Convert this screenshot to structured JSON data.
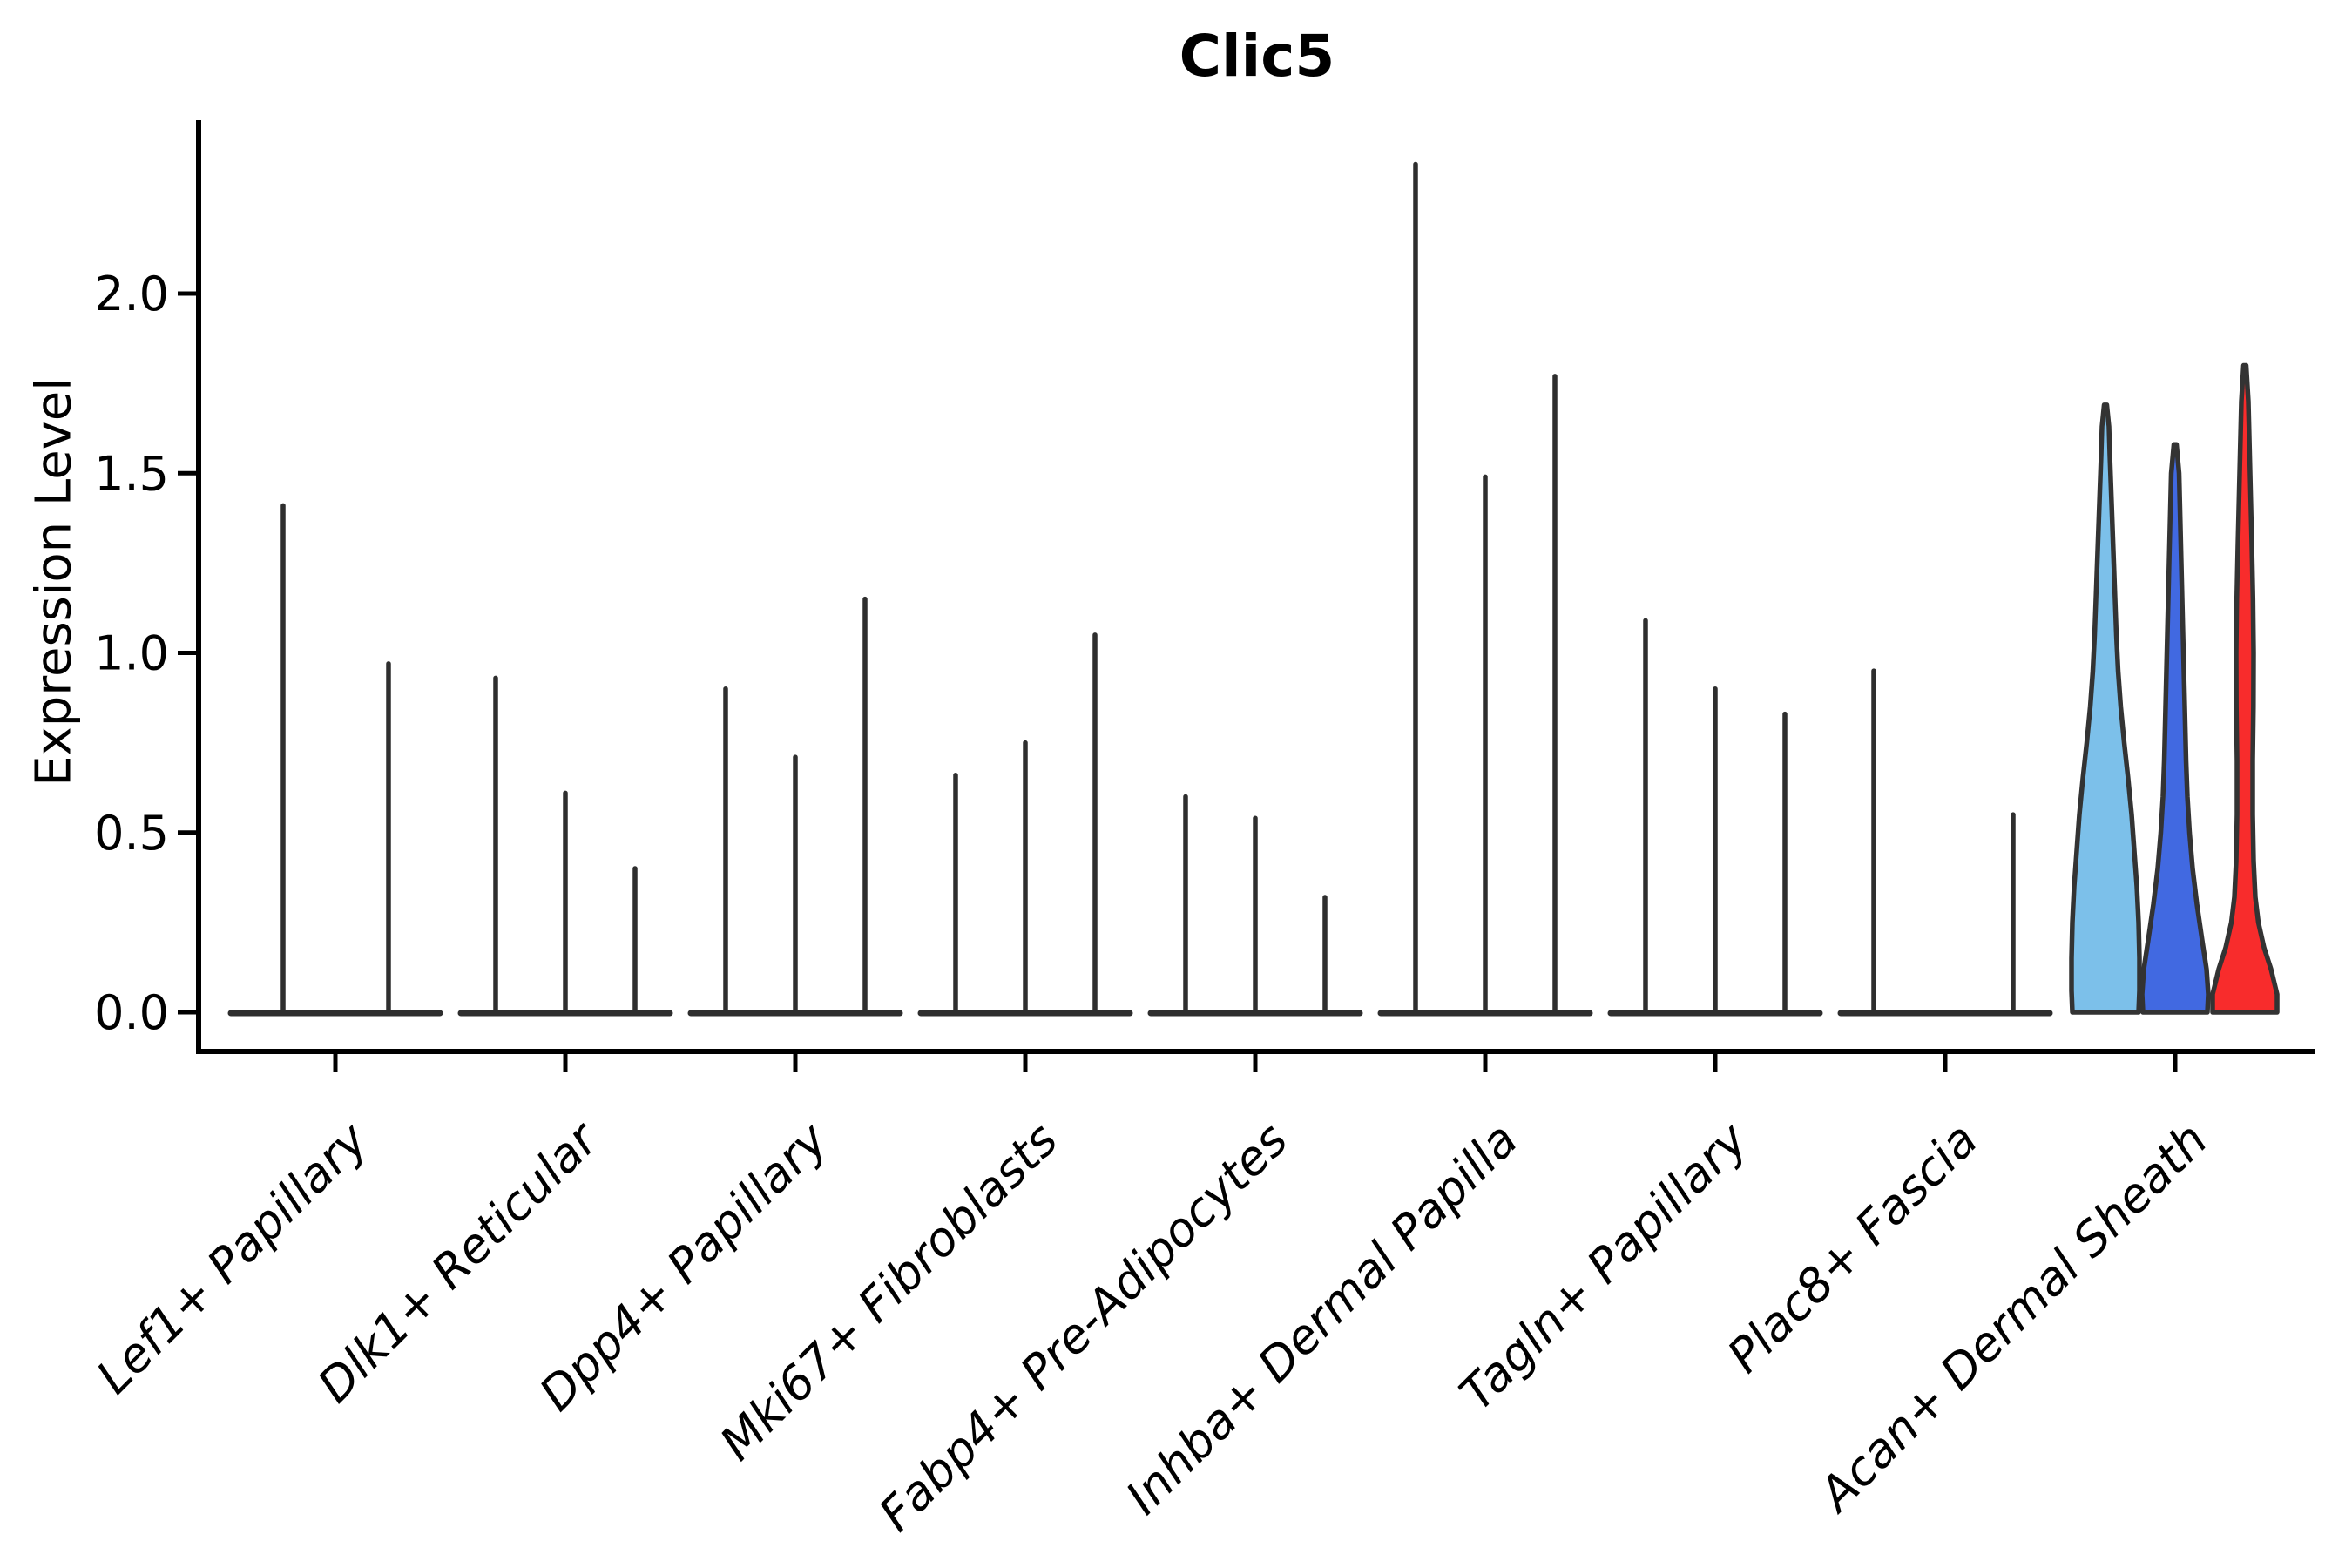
{
  "title": "Clic5",
  "axis": {
    "ylabel": "Expression Level",
    "xtick_rotation_deg": 45,
    "ytick_labels": [
      "0.0",
      "0.5",
      "1.0",
      "1.5",
      "2.0"
    ]
  },
  "colors": {
    "background": "#ffffff",
    "axis": "#000000",
    "spike_line": "#2e2e2e",
    "violin_outline": "#333333",
    "highlight_lightblue": "#7CC0EA",
    "highlight_blue": "#4169E1",
    "highlight_red": "#F82C2C"
  },
  "chart_data": {
    "type": "violin",
    "title": "Clic5",
    "xlabel": "",
    "ylabel": "Expression Level",
    "ylim": [
      0,
      2.48
    ],
    "grid": false,
    "legend": "none",
    "yticks": [
      {
        "label": "0.0",
        "value": 0.0
      },
      {
        "label": "0.5",
        "value": 0.5
      },
      {
        "label": "1.0",
        "value": 1.0
      },
      {
        "label": "1.5",
        "value": 1.5
      },
      {
        "label": "2.0",
        "value": 2.0
      }
    ],
    "categories": [
      "Lef1+ Papillary",
      "Dlk1+ Reticular",
      "Dpp4+ Papillary",
      "Mki67+ Fibroblasts",
      "Fabp4+ Pre-Adipocytes",
      "Inhba+ Dermal Papilla",
      "Tagln+ Papillary",
      "Plac8+ Fascia",
      "Acan+ Dermal Sheath"
    ],
    "note": "Violin plot; all violins collapse to thin spikes (max expression shown) except the three highlighted violins of Acan+ Dermal Sheath.",
    "groups": [
      {
        "category": "Lef1+ Papillary",
        "violins": [
          {
            "dx": -60,
            "max": 1.41
          },
          {
            "dx": 61,
            "max": 0.97
          }
        ]
      },
      {
        "category": "Dlk1+ Reticular",
        "violins": [
          {
            "dx": -80,
            "max": 0.93
          },
          {
            "dx": 0,
            "max": 0.61
          },
          {
            "dx": 80,
            "max": 0.4
          }
        ]
      },
      {
        "category": "Dpp4+ Papillary",
        "violins": [
          {
            "dx": -80,
            "max": 0.9
          },
          {
            "dx": 0,
            "max": 0.71
          },
          {
            "dx": 80,
            "max": 1.15
          }
        ]
      },
      {
        "category": "Mki67+ Fibroblasts",
        "violins": [
          {
            "dx": -80,
            "max": 0.66
          },
          {
            "dx": 0,
            "max": 0.75
          },
          {
            "dx": 80,
            "max": 1.05
          }
        ]
      },
      {
        "category": "Fabp4+ Pre-Adipocytes",
        "violins": [
          {
            "dx": -80,
            "max": 0.6
          },
          {
            "dx": 0,
            "max": 0.54
          },
          {
            "dx": 80,
            "max": 0.32
          }
        ]
      },
      {
        "category": "Inhba+ Dermal Papilla",
        "violins": [
          {
            "dx": -80,
            "max": 2.36
          },
          {
            "dx": 0,
            "max": 1.49
          },
          {
            "dx": 80,
            "max": 1.77
          }
        ]
      },
      {
        "category": "Tagln+ Papillary",
        "violins": [
          {
            "dx": -80,
            "max": 1.09
          },
          {
            "dx": 0,
            "max": 0.9
          },
          {
            "dx": 80,
            "max": 0.83
          }
        ]
      },
      {
        "category": "Plac8+ Fascia",
        "violins": [
          {
            "dx": -82,
            "max": 0.95
          },
          {
            "dx": 78,
            "max": 0.55
          }
        ]
      },
      {
        "category": "Acan+ Dermal Sheath",
        "violins": [
          {
            "dx": -80,
            "max": 1.69,
            "fill": "#7CC0EA",
            "profile": [
              [
                0,
                38
              ],
              [
                0.06,
                39
              ],
              [
                0.15,
                39
              ],
              [
                0.25,
                38
              ],
              [
                0.35,
                36
              ],
              [
                0.45,
                33
              ],
              [
                0.55,
                30
              ],
              [
                0.65,
                26
              ],
              [
                0.75,
                21.5
              ],
              [
                0.85,
                17.5
              ],
              [
                0.95,
                14.5
              ],
              [
                1.05,
                12.5
              ],
              [
                1.15,
                11
              ],
              [
                1.25,
                9.5
              ],
              [
                1.35,
                8
              ],
              [
                1.45,
                6.5
              ],
              [
                1.55,
                5
              ],
              [
                1.63,
                4
              ],
              [
                1.69,
                1.5
              ]
            ]
          },
          {
            "dx": 0,
            "max": 1.58,
            "fill": "#4169E1",
            "profile": [
              [
                0,
                37
              ],
              [
                0.05,
                38
              ],
              [
                0.12,
                36
              ],
              [
                0.2,
                31
              ],
              [
                0.3,
                25
              ],
              [
                0.4,
                20
              ],
              [
                0.5,
                16.5
              ],
              [
                0.6,
                14
              ],
              [
                0.7,
                12.5
              ],
              [
                0.8,
                11.5
              ],
              [
                0.9,
                10.5
              ],
              [
                1.0,
                9.5
              ],
              [
                1.1,
                8.5
              ],
              [
                1.2,
                7.5
              ],
              [
                1.3,
                6.5
              ],
              [
                1.4,
                5.5
              ],
              [
                1.5,
                4.5
              ],
              [
                1.58,
                1.5
              ]
            ]
          },
          {
            "dx": 80,
            "max": 1.8,
            "fill": "#F82C2C",
            "profile": [
              [
                0,
                37
              ],
              [
                0.05,
                37
              ],
              [
                0.12,
                30
              ],
              [
                0.18,
                22
              ],
              [
                0.25,
                15.5
              ],
              [
                0.32,
                12
              ],
              [
                0.42,
                10
              ],
              [
                0.55,
                9
              ],
              [
                0.7,
                9
              ],
              [
                0.85,
                9.8
              ],
              [
                1.0,
                10
              ],
              [
                1.15,
                9.3
              ],
              [
                1.3,
                8
              ],
              [
                1.45,
                6.5
              ],
              [
                1.6,
                5
              ],
              [
                1.7,
                4
              ],
              [
                1.8,
                1.5
              ]
            ]
          }
        ]
      }
    ]
  }
}
